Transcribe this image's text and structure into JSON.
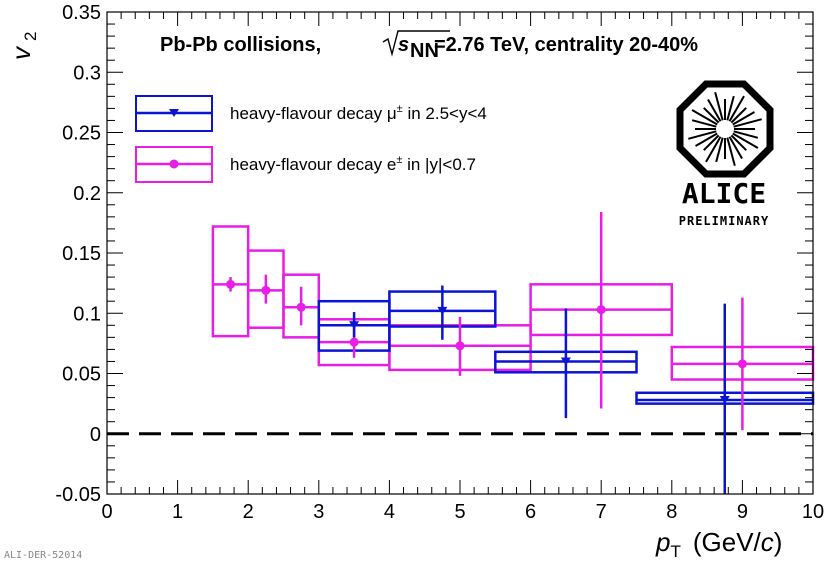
{
  "chart_data": {
    "type": "scatter",
    "title": "Pb-Pb collisions,",
    "title_energy": "=2.76 TeV, centrality 20-40%",
    "title_sqrt_s": "s",
    "title_sqrt_sub": "NN",
    "xlabel_main": "p",
    "xlabel_sub": "T",
    "xlabel_unit": "(GeV/",
    "xlabel_unit_c": "c",
    "xlabel_unit_close": ")",
    "ylabel_main": "v",
    "ylabel_sub": "2",
    "xlim": [
      0,
      10
    ],
    "ylim": [
      -0.05,
      0.35
    ],
    "xticks": [
      0,
      1,
      2,
      3,
      4,
      5,
      6,
      7,
      8,
      9,
      10
    ],
    "xtick_labels": [
      "0",
      "1",
      "2",
      "3",
      "4",
      "5",
      "6",
      "7",
      "8",
      "9",
      "10"
    ],
    "yticks": [
      -0.05,
      0,
      0.05,
      0.1,
      0.15,
      0.2,
      0.25,
      0.3,
      0.35
    ],
    "ytick_labels": [
      "-0.05",
      "0",
      "0.05",
      "0.1",
      "0.15",
      "0.2",
      "0.25",
      "0.3",
      "0.35"
    ],
    "reference_line": 0,
    "grid": false,
    "legend_position": "top-left",
    "series": [
      {
        "name": "heavy-flavour decay μ± in 2.5<y<4",
        "color": "#0a14d2",
        "marker": "triangle-down",
        "points": [
          {
            "x": 3.5,
            "y": 0.09,
            "stat": [
              0.08,
              0.101
            ],
            "sys_x": [
              3.0,
              4.0
            ],
            "sys_y": [
              0.069,
              0.11
            ]
          },
          {
            "x": 4.75,
            "y": 0.102,
            "stat": [
              0.078,
              0.123
            ],
            "sys_x": [
              4.0,
              5.5
            ],
            "sys_y": [
              0.089,
              0.118
            ]
          },
          {
            "x": 6.5,
            "y": 0.06,
            "stat": [
              0.013,
              0.104
            ],
            "sys_x": [
              5.5,
              7.5
            ],
            "sys_y": [
              0.051,
              0.068
            ]
          },
          {
            "x": 8.75,
            "y": 0.028,
            "stat": [
              -0.05,
              0.108
            ],
            "sys_x": [
              7.5,
              10.0
            ],
            "sys_y": [
              0.025,
              0.034
            ]
          }
        ]
      },
      {
        "name": "heavy-flavour decay e± in |y|<0.7",
        "color": "#e61ee6",
        "marker": "circle",
        "points": [
          {
            "x": 1.75,
            "y": 0.124,
            "stat": [
              0.118,
              0.13
            ],
            "sys_x": [
              1.5,
              2.0
            ],
            "sys_y": [
              0.081,
              0.172
            ]
          },
          {
            "x": 2.25,
            "y": 0.119,
            "stat": [
              0.108,
              0.132
            ],
            "sys_x": [
              2.0,
              2.5
            ],
            "sys_y": [
              0.088,
              0.152
            ]
          },
          {
            "x": 2.75,
            "y": 0.105,
            "stat": [
              0.09,
              0.122
            ],
            "sys_x": [
              2.5,
              3.0
            ],
            "sys_y": [
              0.08,
              0.132
            ]
          },
          {
            "x": 3.5,
            "y": 0.076,
            "stat": [
              0.063,
              0.091
            ],
            "sys_x": [
              3.0,
              4.0
            ],
            "sys_y": [
              0.057,
              0.095
            ]
          },
          {
            "x": 5.0,
            "y": 0.073,
            "stat": [
              0.048,
              0.097
            ],
            "sys_x": [
              4.0,
              6.0
            ],
            "sys_y": [
              0.053,
              0.09
            ]
          },
          {
            "x": 7.0,
            "y": 0.103,
            "stat": [
              0.021,
              0.184
            ],
            "sys_x": [
              6.0,
              8.0
            ],
            "sys_y": [
              0.082,
              0.124
            ]
          },
          {
            "x": 9.0,
            "y": 0.058,
            "stat": [
              0.003,
              0.113
            ],
            "sys_x": [
              8.0,
              10.0
            ],
            "sys_y": [
              0.045,
              0.072
            ]
          }
        ]
      }
    ],
    "legend": [
      {
        "label_prefix": "heavy-flavour decay ",
        "label_symbol": "μ",
        "label_sup": "±",
        "label_suffix": " in 2.5<y<4"
      },
      {
        "label_prefix": "heavy-flavour decay e",
        "label_symbol": "",
        "label_sup": "±",
        "label_suffix": " in |y|<0.7"
      }
    ]
  },
  "logo": {
    "name_text": "ALICE",
    "status_text": "PRELIMINARY"
  },
  "watermark": "ALI-DER-52014"
}
